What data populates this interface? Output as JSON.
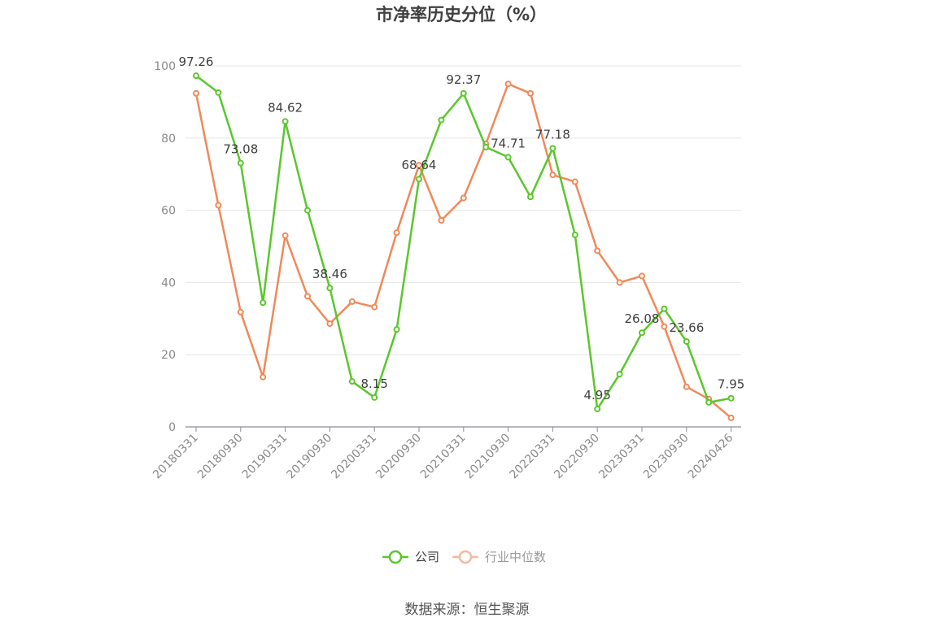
{
  "title": "市净率历史分位（%）",
  "source": "数据来源：恒生聚源",
  "chart_data": {
    "type": "line",
    "title": "市净率历史分位（%）",
    "ylim": [
      0,
      100
    ],
    "yticks": [
      "0",
      "20",
      "40",
      "60",
      "80",
      "100"
    ],
    "grid": true,
    "legend_position": "bottom-center",
    "x": [
      "20180331",
      "20180630",
      "20180930",
      "20181231",
      "20190331",
      "20190630",
      "20190930",
      "20191231",
      "20200331",
      "20200630",
      "20200930",
      "20201231",
      "20210331",
      "20210630",
      "20210930",
      "20211231",
      "20220331",
      "20220630",
      "20220930",
      "20221231",
      "20230331",
      "20230630",
      "20230930",
      "20231231",
      "20240426"
    ],
    "xtick_labels": [
      "20180331",
      "20180930",
      "20190331",
      "20190930",
      "20200331",
      "20200930",
      "20210331",
      "20210930",
      "20220331",
      "20220930",
      "20230331",
      "20230930",
      "20240426"
    ],
    "series": [
      {
        "name": "公司",
        "color": "#5ac72c",
        "values": [
          97.26,
          92.6,
          73.08,
          34.4,
          84.62,
          60.0,
          38.46,
          12.6,
          8.15,
          27.0,
          68.64,
          85.0,
          92.37,
          77.5,
          74.71,
          63.7,
          77.18,
          53.2,
          4.95,
          14.6,
          26.08,
          32.7,
          23.66,
          6.8,
          7.95
        ],
        "labels": {
          "0": "97.26",
          "2": "73.08",
          "4": "84.62",
          "6": "38.46",
          "8": "8.15",
          "10": "68.64",
          "12": "92.37",
          "14": "74.71",
          "16": "77.18",
          "18": "4.95",
          "20": "26.08",
          "22": "23.66",
          "24": "7.95"
        }
      },
      {
        "name": "行业中位数",
        "color": "#f0895a",
        "values": [
          92.4,
          61.4,
          31.8,
          13.8,
          53.0,
          36.2,
          28.6,
          34.7,
          33.2,
          53.8,
          72.5,
          57.2,
          63.4,
          78.4,
          95.0,
          92.4,
          69.8,
          67.9,
          48.8,
          40.0,
          41.8,
          27.8,
          11.1,
          7.7,
          2.5
        ]
      }
    ]
  }
}
